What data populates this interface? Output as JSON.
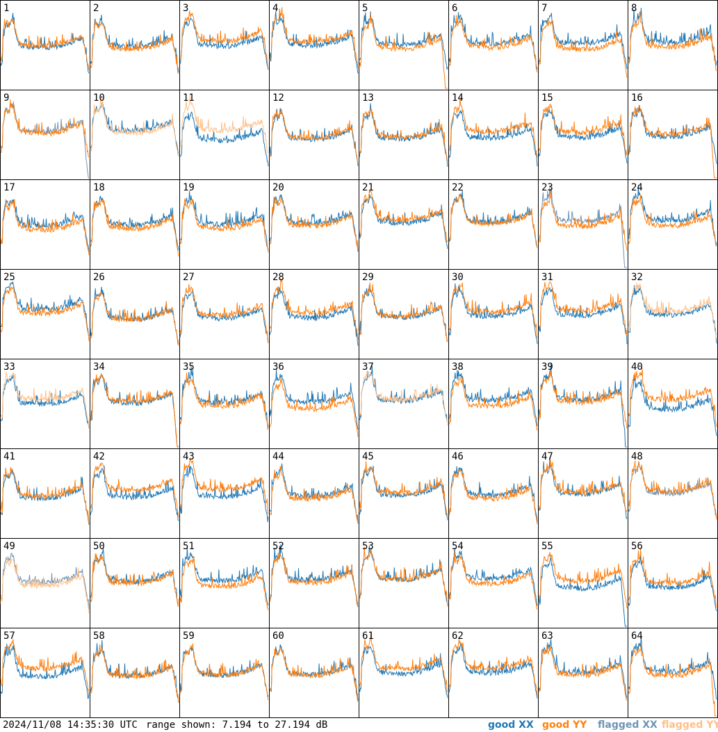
{
  "chart_data": {
    "type": "line",
    "title": "",
    "panels": 64,
    "panel_labels": [
      "1",
      "2",
      "3",
      "4",
      "5",
      "6",
      "7",
      "8",
      "9",
      "10",
      "11",
      "12",
      "13",
      "14",
      "15",
      "16",
      "17",
      "18",
      "19",
      "20",
      "21",
      "22",
      "23",
      "24",
      "25",
      "26",
      "27",
      "28",
      "29",
      "30",
      "31",
      "32",
      "33",
      "34",
      "35",
      "36",
      "37",
      "38",
      "39",
      "40",
      "41",
      "42",
      "43",
      "44",
      "45",
      "46",
      "47",
      "48",
      "49",
      "50",
      "51",
      "52",
      "53",
      "54",
      "55",
      "56",
      "57",
      "58",
      "59",
      "60",
      "61",
      "62",
      "63",
      "64"
    ],
    "ylim": [
      7.194,
      27.194
    ],
    "yunit": "dB",
    "series": [
      {
        "name": "good XX",
        "color": "#1f77b4"
      },
      {
        "name": "good YY",
        "color": "#ff7f0e"
      },
      {
        "name": "flagged XX",
        "color": "#6f94b4"
      },
      {
        "name": "flagged YY",
        "color": "#ffbf87"
      }
    ],
    "flagged_xx_panels": [
      9,
      23,
      48,
      49
    ],
    "flagged_yy_panels": [
      10,
      11,
      32,
      33,
      37,
      49
    ],
    "xx_dropout_panels": [
      9,
      23,
      34,
      39,
      55
    ],
    "yy_dropout_panels": [
      5,
      16,
      34,
      64
    ]
  },
  "footer": {
    "timestamp": "2024/11/08 14:35:30 UTC",
    "range_text": "range shown: 7.194 to 27.194 dB"
  },
  "legend": {
    "good_xx": "good XX",
    "good_yy": "good YY",
    "flagged_xx": "flagged XX",
    "flagged_yy": "flagged YY"
  }
}
